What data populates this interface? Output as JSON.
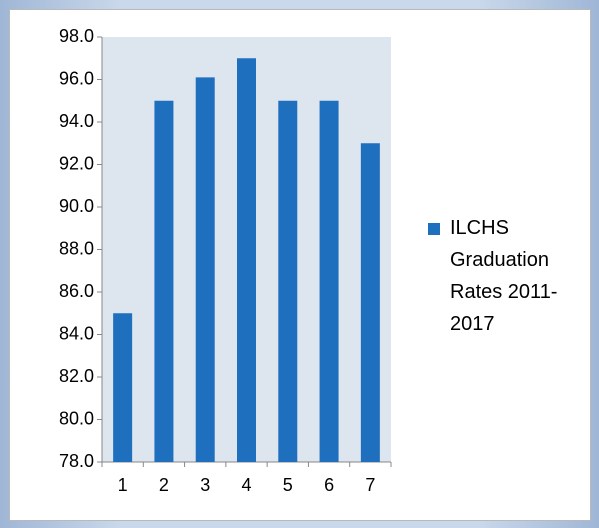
{
  "chart_data": {
    "type": "bar",
    "categories": [
      "1",
      "2",
      "3",
      "4",
      "5",
      "6",
      "7"
    ],
    "series": [
      {
        "name": "ILCHS Graduation Rates 2011-2017",
        "color": "#1f6fbf",
        "values": [
          85,
          95,
          96.1,
          97,
          95,
          95,
          93
        ]
      }
    ],
    "ylim": [
      78,
      98
    ],
    "yticks": [
      {
        "value": 78,
        "label": "78.0"
      },
      {
        "value": 80,
        "label": "80.0"
      },
      {
        "value": 82,
        "label": "82.0"
      },
      {
        "value": 84,
        "label": "84.0"
      },
      {
        "value": 86,
        "label": "86.0"
      },
      {
        "value": 88,
        "label": "88.0"
      },
      {
        "value": 90,
        "label": "90.0"
      },
      {
        "value": 92,
        "label": "92.0"
      },
      {
        "value": 94,
        "label": "94.0"
      },
      {
        "value": 96,
        "label": "96.0"
      },
      {
        "value": 98,
        "label": "98.0"
      }
    ],
    "grid": false,
    "legend": "right"
  }
}
